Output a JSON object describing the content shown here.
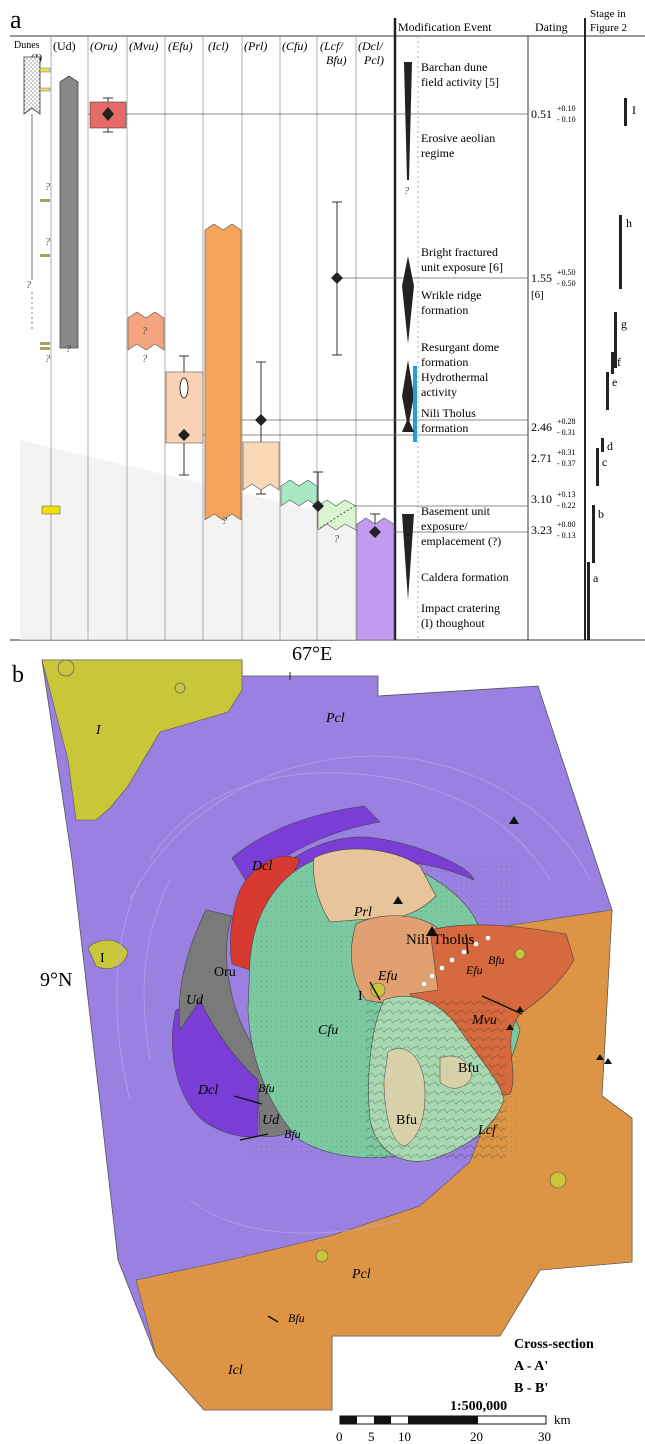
{
  "panel_a": {
    "label": "a",
    "unit_headers": [
      {
        "text": "Dunes",
        "italic": false
      },
      {
        "text": "(Ud)",
        "italic": false
      },
      {
        "text": "(Oru)",
        "italic": true
      },
      {
        "text": "(Mvu)",
        "italic": true
      },
      {
        "text": "(Efu)",
        "italic": true
      },
      {
        "text": "(Icl)",
        "italic": true
      },
      {
        "text": "(Prl)",
        "italic": true
      },
      {
        "text": "(Cfu)",
        "italic": true
      },
      {
        "text": "(Lcf/",
        "italic": true
      },
      {
        "text": "(Dcl/",
        "italic": true
      }
    ],
    "unit_headers_line2": {
      "impact": "(I)",
      "lcf": "Bfu)",
      "dcl": "Pcl)"
    },
    "col_modification": "Modification Event",
    "col_dating": "Dating",
    "col_stage": "Stage in",
    "col_stage2": "Figure 2",
    "events": [
      "Barchan dune",
      "field activity [5]",
      "Erosive aeolian",
      "regime",
      "Bright fractured",
      "unit exposure [6]",
      "Wrikle ridge",
      "formation",
      "Resurgant dome",
      "formation",
      "Hydrothermal",
      "activity",
      "Nili Tholus",
      "formation",
      "Basement unit",
      "exposure/",
      "emplacement (?)",
      "Caldera formation",
      "Impact cratering",
      "(I) thoughout"
    ],
    "dating": [
      {
        "age": "0.51",
        "plus": "+0.10",
        "minus": "- 0.10"
      },
      {
        "age": "1.55",
        "plus": "+0.50",
        "minus": "- 0.50",
        "ref": "[6]"
      },
      {
        "age": "2.46",
        "plus": "+0.28",
        "minus": "- 0.31"
      },
      {
        "age": "2.71",
        "plus": "+0.31",
        "minus": "- 0.37"
      },
      {
        "age": "3.10",
        "plus": "+0.13",
        "minus": "- 0.22"
      },
      {
        "age": "3.23",
        "plus": "+0.80",
        "minus": "- 0.13"
      }
    ],
    "stages": [
      "I",
      "h",
      "g",
      "f",
      "e",
      "d",
      "c",
      "b",
      "a"
    ],
    "question_mark": "?"
  },
  "panel_b": {
    "label": "b",
    "lon_label": "67°E",
    "lat_label": "9°N",
    "units": [
      {
        "text": "I",
        "italic": true
      },
      {
        "text": "Pcl",
        "italic": true
      },
      {
        "text": "Dcl",
        "italic": true
      },
      {
        "text": "Prl",
        "italic": true
      },
      {
        "text": "Nili Tholus",
        "italic": false
      },
      {
        "text": "Efu",
        "italic": true
      },
      {
        "text": "Efu",
        "italic": true
      },
      {
        "text": "Bfu",
        "italic": true
      },
      {
        "text": "I",
        "italic": false
      },
      {
        "text": "Oru",
        "italic": false
      },
      {
        "text": "Ud",
        "italic": true
      },
      {
        "text": "Cfu",
        "italic": true
      },
      {
        "text": "Mvu",
        "italic": true
      },
      {
        "text": "I",
        "italic": false
      },
      {
        "text": "Bfu",
        "italic": false
      },
      {
        "text": "Dcl",
        "italic": true
      },
      {
        "text": "Bfu",
        "italic": true
      },
      {
        "text": "Ud",
        "italic": true
      },
      {
        "text": "Bfu",
        "italic": true
      },
      {
        "text": "Bfu",
        "italic": false
      },
      {
        "text": "Lcf",
        "italic": true
      },
      {
        "text": "Bfu",
        "italic": true
      },
      {
        "text": "Pcl",
        "italic": true
      },
      {
        "text": "Icl",
        "italic": true
      }
    ],
    "cross_section_title": "Cross-section",
    "cross_section_aa": "A - A'",
    "cross_section_bb": "B - B'",
    "scale_ratio": "1:500,000",
    "scale_ticks": [
      "0",
      "5",
      "10",
      "20",
      "30"
    ],
    "scale_unit": "km"
  },
  "colors": {
    "oru": "#e66a6a",
    "mvu": "#f4a47e",
    "efu": "#f9d1b4",
    "icl": "#f4a55a",
    "prl": "#fbd9b6",
    "cfu": "#a8e6c4",
    "lcf": "#d8f5d0",
    "dcl": "#c49af0",
    "pcl": "#b497f0",
    "ud": "#888888",
    "hydro": "#2a9ad8",
    "impact": "#f0e000",
    "map_pcl": "#9a80e0",
    "map_icl": "#dd9545",
    "map_impact": "#c9c63a",
    "map_dcl": "#7a3ed6",
    "map_cfu": "#7cc8a0",
    "map_prl": "#e8c49a",
    "map_efu": "#e0a070",
    "map_mvu": "#d66a3e",
    "map_oru": "#d83a32",
    "map_ud": "#7a7a7a",
    "map_bfu": "#d8d0a8"
  }
}
